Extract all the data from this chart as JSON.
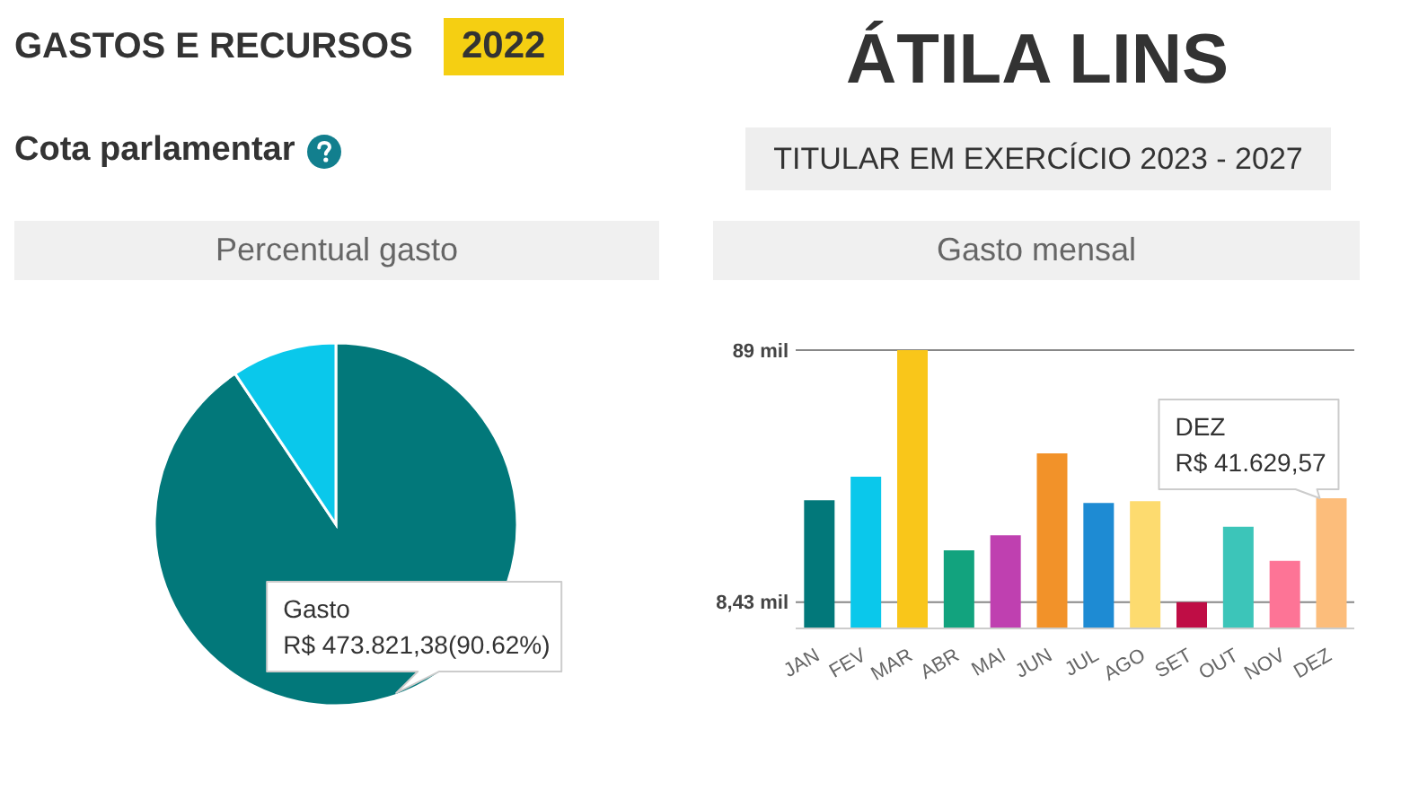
{
  "chart_data": [
    {
      "type": "pie",
      "title": "Percentual gasto",
      "categories": [
        "Gasto",
        null
      ],
      "values": [
        90.62,
        9.38
      ],
      "colors": [
        "#02787a",
        "#0ac8eb"
      ],
      "value_labels": [
        "R$ 473.821,38(90.62%)",
        null
      ],
      "annotations": [
        "GASTOS E RECURSOS",
        "2022",
        "Cota parlamentar"
      ]
    },
    {
      "type": "bar",
      "title": "Gasto mensal",
      "categories": [
        "JAN",
        "FEV",
        "MAR",
        "ABR",
        "MAI",
        "JUN",
        "JUL",
        "AGO",
        "SET",
        "OUT",
        "NOV",
        "DEZ"
      ],
      "values": [
        41,
        48.5,
        89,
        25,
        29.8,
        56,
        40.1,
        40.7,
        8.43,
        32.5,
        21.6,
        41.62957
      ],
      "colors": [
        "#02787a",
        "#0ac8eb",
        "#f9c61a",
        "#12a37e",
        "#bf40b0",
        "#f29229",
        "#1e8bd3",
        "#fddb6f",
        "#bf0d45",
        "#3cc5b9",
        "#fd7496",
        "#fcbd7b"
      ],
      "ylim": [
        0,
        89
      ],
      "yticks": [
        {
          "value": 8.43,
          "label": "8,43 mil"
        },
        {
          "value": 89,
          "label": "89 mil"
        }
      ],
      "grid": "y",
      "annotations": [
        "ÁTILA LINS",
        "TITULAR EM EXERCÍCIO 2023 - 2027",
        {
          "text": "R$ 41.629,57",
          "x": "DEZ",
          "y": 41.62957
        }
      ]
    }
  ]
}
